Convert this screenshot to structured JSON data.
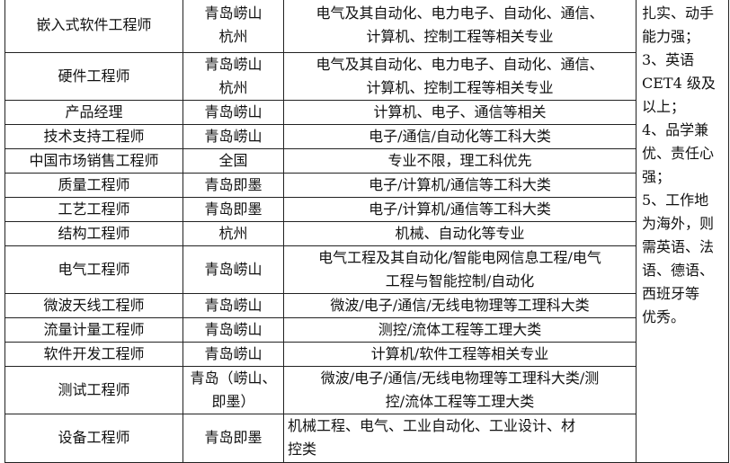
{
  "rows": [
    {
      "position": "嵌入式软件工程师",
      "location": [
        "青岛崂山",
        "杭州"
      ],
      "major": [
        "电气及其自动化、电力电子、自动化、通信、",
        "计算机、控制工程等相关专业"
      ]
    },
    {
      "position": "硬件工程师",
      "location": [
        "青岛崂山",
        "杭州"
      ],
      "major": [
        "电气及其自动化、电力电子、自动化、通信、",
        "计算机、控制工程等相关专业"
      ]
    },
    {
      "position": "产品经理",
      "location": [
        "青岛崂山"
      ],
      "major": [
        "计算机、电子、通信等相关"
      ]
    },
    {
      "position": "技术支持工程师",
      "location": [
        "青岛崂山"
      ],
      "major": [
        "电子/通信/自动化等工科大类"
      ]
    },
    {
      "position": "中国市场销售工程师",
      "location": [
        "全国"
      ],
      "major": [
        "专业不限，理工科优先"
      ]
    },
    {
      "position": "质量工程师",
      "location": [
        "青岛即墨"
      ],
      "major": [
        "电子/计算机/通信等工科大类"
      ]
    },
    {
      "position": "工艺工程师",
      "location": [
        "青岛即墨"
      ],
      "major": [
        "电子/计算机/通信等工科大类"
      ]
    },
    {
      "position": "结构工程师",
      "location": [
        "杭州"
      ],
      "major": [
        "机械、自动化等专业"
      ]
    },
    {
      "position": "电气工程师",
      "location": [
        "青岛崂山"
      ],
      "major": [
        "电气工程及其自动化/智能电网信息工程/电气",
        "工程与智能控制/自动化"
      ]
    },
    {
      "position": "微波天线工程师",
      "location": [
        "青岛崂山"
      ],
      "major": [
        "微波/电子/通信/无线电物理等工理科大类"
      ]
    },
    {
      "position": "流量计量工程师",
      "location": [
        "青岛崂山"
      ],
      "major": [
        "测控/流体工程等工理大类"
      ]
    },
    {
      "position": "软件开发工程师",
      "location": [
        "青岛崂山"
      ],
      "major": [
        "计算机/软件工程等相关专业"
      ]
    },
    {
      "position": "测试工程师",
      "location": [
        "青岛（崂山、",
        "即墨）"
      ],
      "major": [
        "微波/电子/通信/无线电物理等工理科大类/测",
        "控/流体工程等工理大类"
      ]
    },
    {
      "position": "设备工程师",
      "location": [
        "青岛即墨"
      ],
      "major": [
        "机械工程、电气、工业自动化、工业设计、材",
        "控类"
      ],
      "major_align": "left"
    }
  ],
  "requirements_note": [
    "扎实、动手",
    "能力强；",
    "3、英语",
    "CET4 级及",
    "以上；",
    "4、品学兼",
    "优、责任心",
    "强；",
    "5、工作地",
    "为海外，则",
    "需英语、法",
    "语、德语、",
    "西班牙等",
    "优秀。"
  ]
}
